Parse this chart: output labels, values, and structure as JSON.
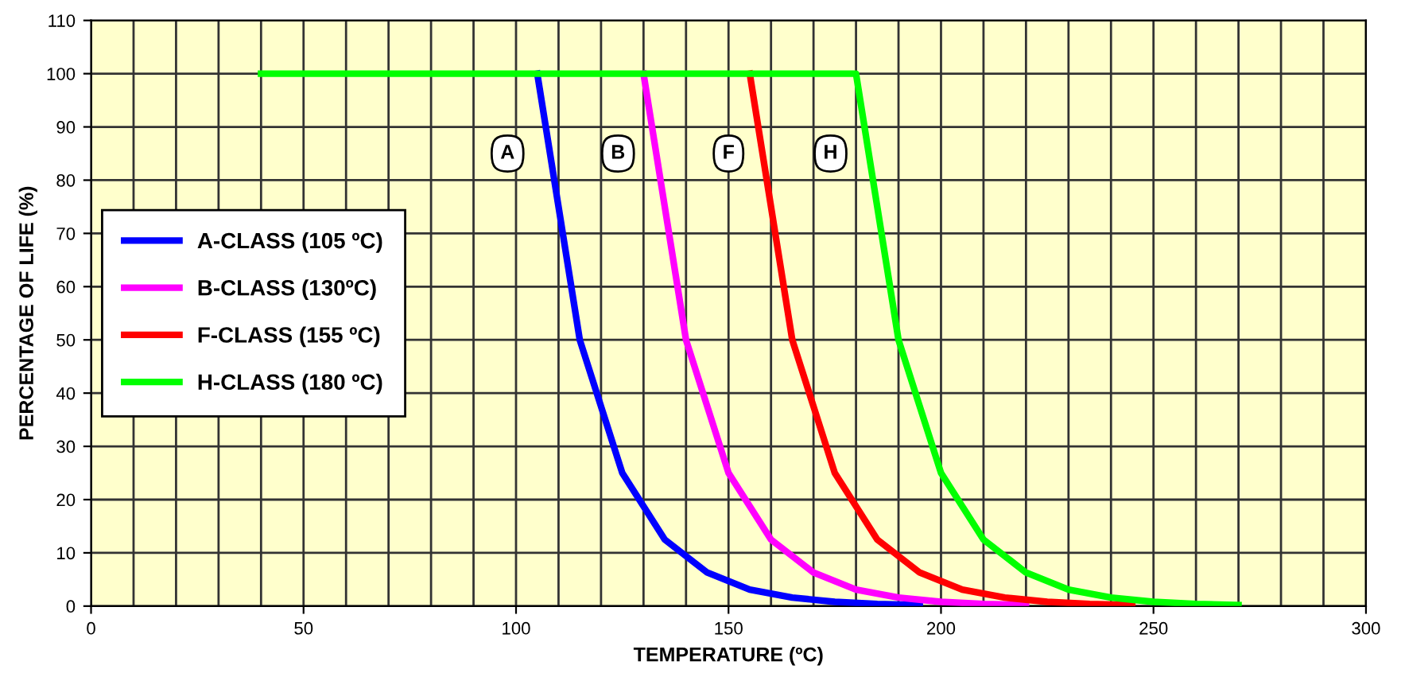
{
  "chart_data": {
    "type": "line",
    "xlabel": "TEMPERATURE (ºC)",
    "ylabel": "PERCENTAGE OF LIFE (%)",
    "series": [
      {
        "name": "A-CLASS (105 ºC)",
        "color": "#0000ff",
        "x": [
          105,
          115,
          125,
          135,
          145,
          155,
          165,
          175,
          185,
          195
        ],
        "values": [
          100,
          50,
          25,
          12.5,
          6.3,
          3.1,
          1.6,
          0.8,
          0.4,
          0.2
        ]
      },
      {
        "name": "B-CLASS (130ºC)",
        "color": "#ff00ff",
        "x": [
          130,
          140,
          150,
          160,
          170,
          180,
          190,
          200,
          210,
          220
        ],
        "values": [
          100,
          50,
          25,
          12.5,
          6.3,
          3.1,
          1.6,
          0.8,
          0.4,
          0.2
        ]
      },
      {
        "name": "F-CLASS (155 ºC)",
        "color": "#ff0000",
        "x": [
          155,
          165,
          175,
          185,
          195,
          205,
          215,
          225,
          235,
          245
        ],
        "values": [
          100,
          50,
          25,
          12.5,
          6.3,
          3.1,
          1.6,
          0.8,
          0.4,
          0.2
        ]
      },
      {
        "name": "H-CLASS (180 ºC)",
        "color": "#00ff00",
        "x": [
          40,
          180,
          190,
          200,
          210,
          220,
          230,
          240,
          250,
          260,
          270
        ],
        "values": [
          100,
          100,
          50,
          25,
          12.5,
          6.3,
          3.1,
          1.6,
          0.8,
          0.4,
          0.2
        ]
      }
    ],
    "annotations": [
      {
        "text": "A",
        "x": 98,
        "y": 85
      },
      {
        "text": "B",
        "x": 124,
        "y": 85
      },
      {
        "text": "F",
        "x": 150,
        "y": 85
      },
      {
        "text": "H",
        "x": 174,
        "y": 85
      }
    ],
    "xlim": [
      0,
      300
    ],
    "ylim": [
      0,
      110
    ],
    "xticks": [
      0,
      50,
      100,
      150,
      200,
      250,
      300
    ],
    "yticks": [
      0,
      10,
      20,
      30,
      40,
      50,
      60,
      70,
      80,
      90,
      100,
      110
    ],
    "grid": true,
    "legend": "center left",
    "marker": "none",
    "line_style": "solid"
  }
}
